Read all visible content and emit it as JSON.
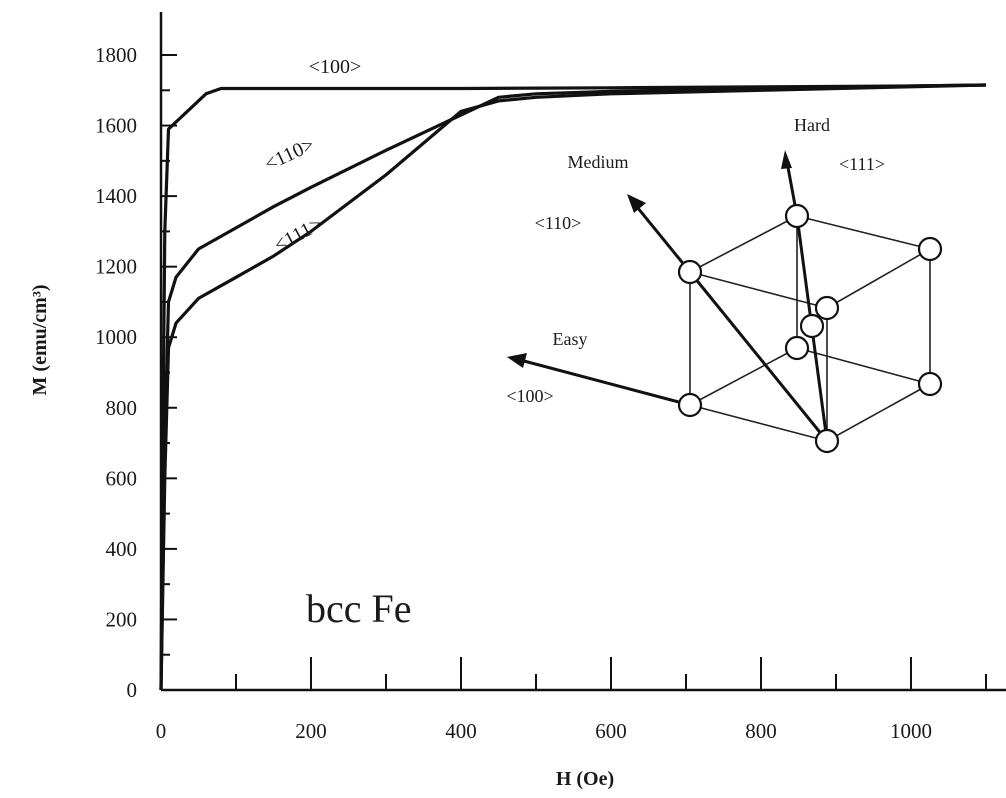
{
  "chart_data": {
    "type": "line",
    "xlabel": "H (Oe)",
    "ylabel": "M (emu/cm³)",
    "xlim": [
      0,
      1100
    ],
    "ylim": [
      0,
      1800
    ],
    "x_ticks": [
      "0",
      "200",
      "400",
      "600",
      "800",
      "1000"
    ],
    "y_ticks": [
      "0",
      "200",
      "400",
      "600",
      "800",
      "1000",
      "1200",
      "1400",
      "1600",
      "1800"
    ],
    "annotation": "bcc Fe",
    "series": [
      {
        "name": "<100>",
        "x": [
          0,
          2,
          5,
          10,
          20,
          40,
          60,
          80,
          200,
          400,
          600,
          800,
          1000,
          1100
        ],
        "y": [
          0,
          600,
          1300,
          1590,
          1610,
          1650,
          1690,
          1705,
          1705,
          1705,
          1707,
          1710,
          1712,
          1715
        ]
      },
      {
        "name": "<110>",
        "x": [
          0,
          5,
          10,
          20,
          50,
          100,
          150,
          200,
          300,
          400,
          450,
          500,
          600,
          800,
          1000,
          1100
        ],
        "y": [
          0,
          700,
          1100,
          1170,
          1250,
          1310,
          1370,
          1425,
          1530,
          1630,
          1680,
          1690,
          1697,
          1705,
          1712,
          1715
        ]
      },
      {
        "name": "<111>",
        "x": [
          0,
          5,
          10,
          20,
          50,
          100,
          150,
          200,
          300,
          400,
          450,
          500,
          600,
          800,
          1000,
          1100
        ],
        "y": [
          0,
          600,
          970,
          1040,
          1110,
          1170,
          1230,
          1300,
          1460,
          1640,
          1670,
          1680,
          1690,
          1700,
          1710,
          1715
        ]
      }
    ]
  },
  "inset": {
    "easy_label": "Easy",
    "easy_dir": "<100>",
    "medium_label": "Medium",
    "medium_dir": "<110>",
    "hard_label": "Hard",
    "hard_dir": "<111>"
  }
}
